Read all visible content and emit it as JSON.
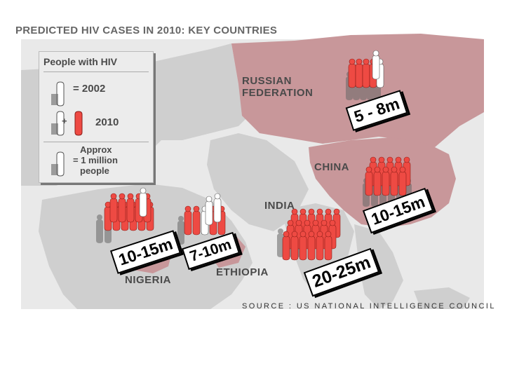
{
  "title": "PREDICTED HIV CASES IN 2010: KEY COUNTRIES",
  "source": "SOURCE : US NATIONAL INTELLIGENCE COUNCIL",
  "legend": {
    "heading": "People with HIV",
    "row_2002": "= 2002",
    "plus": "+",
    "row_2010": "2010",
    "approx_line1": "Approx",
    "approx_line2": "= 1 million",
    "approx_line3": "people"
  },
  "countries": {
    "russia": {
      "name_line1": "RUSSIAN",
      "name_line2": "FEDERATION",
      "estimate": "5 - 8m"
    },
    "china": {
      "name": "CHINA",
      "estimate": "10-15m"
    },
    "india": {
      "name": "INDIA",
      "estimate": "20-25m"
    },
    "nigeria": {
      "name": "NIGERIA",
      "estimate": "10-15m"
    },
    "ethiopia": {
      "name": "ETHIOPIA",
      "estimate": "7-10m"
    }
  },
  "colors": {
    "highlight_land": "#c8979a",
    "other_land": "#cfcfcf",
    "sea": "#e9e9e9",
    "figure_2010": "#ee4a43",
    "figure_2002": "#ffffff"
  }
}
